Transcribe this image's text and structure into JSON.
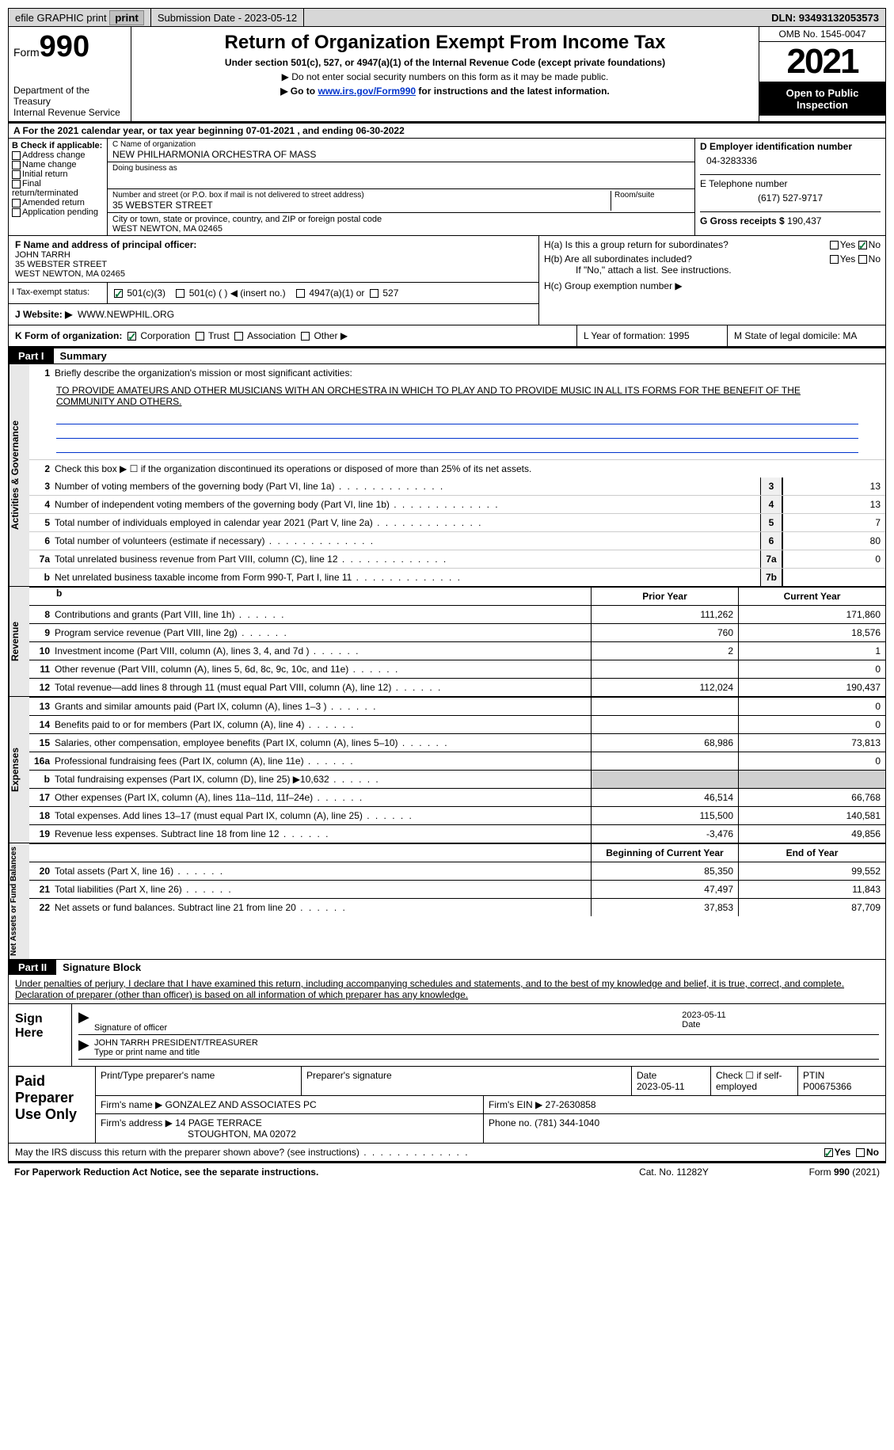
{
  "topbar": {
    "efile": "efile GRAPHIC print",
    "submission_label": "Submission Date - 2023-05-12",
    "dln_label": "DLN: 93493132053573"
  },
  "header": {
    "form_word": "Form",
    "form_num": "990",
    "dept": "Department of the Treasury",
    "irs": "Internal Revenue Service",
    "title": "Return of Organization Exempt From Income Tax",
    "sub1": "Under section 501(c), 527, or 4947(a)(1) of the Internal Revenue Code (except private foundations)",
    "sub2": "▶ Do not enter social security numbers on this form as it may be made public.",
    "sub3a": "▶ Go to ",
    "sub3link": "www.irs.gov/Form990",
    "sub3b": " for instructions and the latest information.",
    "omb": "OMB No. 1545-0047",
    "year": "2021",
    "inspect": "Open to Public Inspection"
  },
  "a_line": "A For the 2021 calendar year, or tax year beginning 07-01-2021    , and ending 06-30-2022",
  "b": {
    "label": "B Check if applicable:",
    "items": [
      "Address change",
      "Name change",
      "Initial return",
      "Final return/terminated",
      "Amended return",
      "Application pending"
    ]
  },
  "c": {
    "name_lbl": "C Name of organization",
    "name": "NEW PHILHARMONIA ORCHESTRA OF MASS",
    "dba_lbl": "Doing business as",
    "dba": "",
    "street_lbl": "Number and street (or P.O. box if mail is not delivered to street address)",
    "room_lbl": "Room/suite",
    "street": "35 WEBSTER STREET",
    "city_lbl": "City or town, state or province, country, and ZIP or foreign postal code",
    "city": "WEST NEWTON, MA  02465"
  },
  "d": {
    "ein_lbl": "D Employer identification number",
    "ein": "04-3283336",
    "tel_lbl": "E Telephone number",
    "tel": "(617) 527-9717",
    "gross_lbl": "G Gross receipts $",
    "gross": "190,437"
  },
  "f": {
    "lbl": "F  Name and address of principal officer:",
    "name": "JOHN TARRH",
    "addr1": "35 WEBSTER STREET",
    "addr2": "WEST NEWTON, MA  02465"
  },
  "h": {
    "a": "H(a)  Is this a group return for subordinates?",
    "b": "H(b)  Are all subordinates included?",
    "note": "If \"No,\" attach a list. See instructions.",
    "c": "H(c)  Group exemption number ▶",
    "yes": "Yes",
    "no": "No"
  },
  "i": {
    "lbl": "I    Tax-exempt status:",
    "o1": "501(c)(3)",
    "o2": "501(c) (  ) ◀ (insert no.)",
    "o3": "4947(a)(1) or",
    "o4": "527"
  },
  "j": {
    "lbl": "J   Website: ▶",
    "val": "WWW.NEWPHIL.ORG"
  },
  "k": {
    "lbl": "K Form of organization:",
    "o1": "Corporation",
    "o2": "Trust",
    "o3": "Association",
    "o4": "Other ▶",
    "l": "L Year of formation: 1995",
    "m": "M State of legal domicile: MA"
  },
  "part1": {
    "bar": "Part I",
    "title": "Summary",
    "q1": "Briefly describe the organization's mission or most significant activities:",
    "mission": "TO PROVIDE AMATEURS AND OTHER MUSICIANS WITH AN ORCHESTRA IN WHICH TO PLAY AND TO PROVIDE MUSIC IN ALL ITS FORMS FOR THE BENEFIT OF THE COMMUNITY AND OTHERS.",
    "q2": "Check this box ▶ ☐  if the organization discontinued its operations or disposed of more than 25% of its net assets.",
    "lines": [
      {
        "n": "3",
        "d": "Number of voting members of the governing body (Part VI, line 1a)",
        "c": "3",
        "v": "13"
      },
      {
        "n": "4",
        "d": "Number of independent voting members of the governing body (Part VI, line 1b)",
        "c": "4",
        "v": "13"
      },
      {
        "n": "5",
        "d": "Total number of individuals employed in calendar year 2021 (Part V, line 2a)",
        "c": "5",
        "v": "7"
      },
      {
        "n": "6",
        "d": "Total number of volunteers (estimate if necessary)",
        "c": "6",
        "v": "80"
      },
      {
        "n": "7a",
        "d": "Total unrelated business revenue from Part VIII, column (C), line 12",
        "c": "7a",
        "v": "0"
      },
      {
        "n": "b",
        "d": "Net unrelated business taxable income from Form 990-T, Part I, line 11",
        "c": "7b",
        "v": ""
      }
    ],
    "cols": {
      "prior": "Prior Year",
      "current": "Current Year",
      "boy": "Beginning of Current Year",
      "eoy": "End of Year"
    },
    "rev": [
      {
        "n": "8",
        "d": "Contributions and grants (Part VIII, line 1h)",
        "p": "111,262",
        "c": "171,860"
      },
      {
        "n": "9",
        "d": "Program service revenue (Part VIII, line 2g)",
        "p": "760",
        "c": "18,576"
      },
      {
        "n": "10",
        "d": "Investment income (Part VIII, column (A), lines 3, 4, and 7d )",
        "p": "2",
        "c": "1"
      },
      {
        "n": "11",
        "d": "Other revenue (Part VIII, column (A), lines 5, 6d, 8c, 9c, 10c, and 11e)",
        "p": "",
        "c": "0"
      },
      {
        "n": "12",
        "d": "Total revenue—add lines 8 through 11 (must equal Part VIII, column (A), line 12)",
        "p": "112,024",
        "c": "190,437"
      }
    ],
    "exp": [
      {
        "n": "13",
        "d": "Grants and similar amounts paid (Part IX, column (A), lines 1–3 )",
        "p": "",
        "c": "0"
      },
      {
        "n": "14",
        "d": "Benefits paid to or for members (Part IX, column (A), line 4)",
        "p": "",
        "c": "0"
      },
      {
        "n": "15",
        "d": "Salaries, other compensation, employee benefits (Part IX, column (A), lines 5–10)",
        "p": "68,986",
        "c": "73,813"
      },
      {
        "n": "16a",
        "d": "Professional fundraising fees (Part IX, column (A), line 11e)",
        "p": "",
        "c": "0"
      },
      {
        "n": "b",
        "d": "Total fundraising expenses (Part IX, column (D), line 25) ▶10,632",
        "p": "GREY",
        "c": "GREY"
      },
      {
        "n": "17",
        "d": "Other expenses (Part IX, column (A), lines 11a–11d, 11f–24e)",
        "p": "46,514",
        "c": "66,768"
      },
      {
        "n": "18",
        "d": "Total expenses. Add lines 13–17 (must equal Part IX, column (A), line 25)",
        "p": "115,500",
        "c": "140,581"
      },
      {
        "n": "19",
        "d": "Revenue less expenses. Subtract line 18 from line 12",
        "p": "-3,476",
        "c": "49,856"
      }
    ],
    "net": [
      {
        "n": "20",
        "d": "Total assets (Part X, line 16)",
        "p": "85,350",
        "c": "99,552"
      },
      {
        "n": "21",
        "d": "Total liabilities (Part X, line 26)",
        "p": "47,497",
        "c": "11,843"
      },
      {
        "n": "22",
        "d": "Net assets or fund balances. Subtract line 21 from line 20",
        "p": "37,853",
        "c": "87,709"
      }
    ],
    "side1": "Activities & Governance",
    "side2": "Revenue",
    "side3": "Expenses",
    "side4": "Net Assets or Fund Balances"
  },
  "part2": {
    "bar": "Part II",
    "title": "Signature Block",
    "decl": "Under penalties of perjury, I declare that I have examined this return, including accompanying schedules and statements, and to the best of my knowledge and belief, it is true, correct, and complete. Declaration of preparer (other than officer) is based on all information of which preparer has any knowledge.",
    "sign_here": "Sign Here",
    "sig_officer": "Signature of officer",
    "date": "Date",
    "date_v": "2023-05-11",
    "name_title": "JOHN TARRH  PRESIDENT/TREASURER",
    "name_title_lbl": "Type or print name and title",
    "paid": "Paid Preparer Use Only",
    "p1": "Print/Type preparer's name",
    "p2": "Preparer's signature",
    "p3": "Date",
    "p3v": "2023-05-11",
    "p4": "Check ☐ if self-employed",
    "p5": "PTIN",
    "p5v": "P00675366",
    "firm_lbl": "Firm's name    ▶",
    "firm": "GONZALEZ AND ASSOCIATES PC",
    "ein_lbl": "Firm's EIN ▶",
    "ein": "27-2630858",
    "addr_lbl": "Firm's address ▶",
    "addr1": "14 PAGE TERRACE",
    "addr2": "STOUGHTON, MA  02072",
    "phone_lbl": "Phone no.",
    "phone": "(781) 344-1040",
    "discuss": "May the IRS discuss this return with the preparer shown above? (see instructions)",
    "yes": "Yes",
    "no": "No"
  },
  "footer": {
    "l": "For Paperwork Reduction Act Notice, see the separate instructions.",
    "m": "Cat. No. 11282Y",
    "r": "Form 990 (2021)"
  }
}
